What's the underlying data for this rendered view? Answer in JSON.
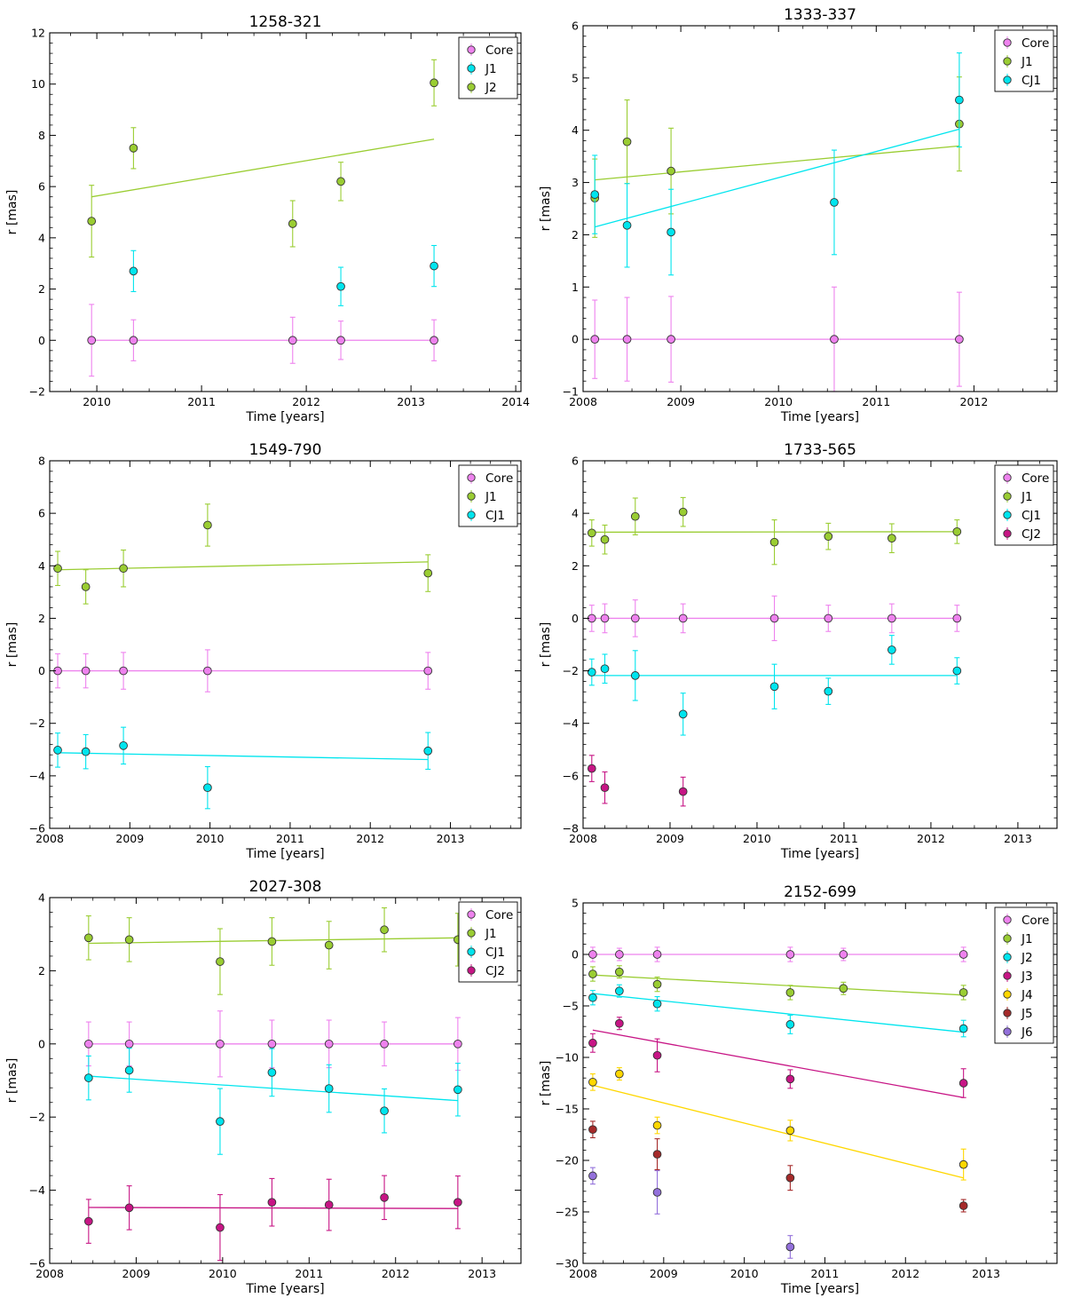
{
  "figure": {
    "xlabel": "Time [years]",
    "ylabel": "r [mas]"
  },
  "colors": {
    "Core": "#ee82ee",
    "J1": "#9acd32",
    "J2_green": "#9acd32",
    "Cyan": "#00e5ee",
    "CJ2": "#c71585",
    "J3": "#c71585",
    "J4": "#ffd700",
    "J5": "#a52a2a",
    "J6": "#9370db"
  },
  "chart_data": [
    {
      "type": "scatter",
      "title": "1258-321",
      "xlabel": "Time [years]",
      "ylabel": "r [mas]",
      "xlim": [
        2009.55,
        2014.05
      ],
      "ylim": [
        -2,
        12
      ],
      "xticks": [
        2010,
        2011,
        2012,
        2013,
        2014
      ],
      "yticks": [
        -2,
        0,
        2,
        4,
        6,
        8,
        10,
        12
      ],
      "legend": "top-right",
      "series": [
        {
          "name": "Core",
          "color": "#ee82ee",
          "x": [
            2009.95,
            2010.35,
            2011.87,
            2012.33,
            2013.22
          ],
          "y": [
            0,
            0,
            0,
            0,
            0
          ],
          "err": [
            1.4,
            0.8,
            0.9,
            0.75,
            0.8
          ],
          "fit": [
            [
              2009.95,
              0
            ],
            [
              2013.22,
              0
            ]
          ]
        },
        {
          "name": "J1",
          "color": "#00e5ee",
          "x": [
            2010.35,
            2012.33,
            2013.22
          ],
          "y": [
            2.7,
            2.1,
            2.9
          ],
          "err": [
            0.8,
            0.75,
            0.8
          ],
          "fit": null
        },
        {
          "name": "J2",
          "color": "#9acd32",
          "x": [
            2009.95,
            2010.35,
            2011.87,
            2012.33,
            2013.22
          ],
          "y": [
            4.65,
            7.5,
            4.55,
            6.2,
            10.05
          ],
          "err": [
            1.4,
            0.8,
            0.9,
            0.75,
            0.9
          ],
          "fit": [
            [
              2009.95,
              5.6
            ],
            [
              2013.22,
              7.85
            ]
          ]
        }
      ]
    },
    {
      "type": "scatter",
      "title": "1333-337",
      "xlabel": "Time [years]",
      "ylabel": "r [mas]",
      "xlim": [
        2008,
        2012.85
      ],
      "ylim": [
        -1,
        6
      ],
      "xticks": [
        2008,
        2009,
        2010,
        2011,
        2012
      ],
      "yticks": [
        -1,
        0,
        1,
        2,
        3,
        4,
        5,
        6
      ],
      "legend": "top-right",
      "series": [
        {
          "name": "Core",
          "color": "#ee82ee",
          "x": [
            2008.12,
            2008.45,
            2008.9,
            2010.57,
            2011.85
          ],
          "y": [
            0,
            0,
            0,
            0,
            0
          ],
          "err": [
            0.75,
            0.8,
            0.82,
            1.0,
            0.9
          ],
          "fit": [
            [
              2008.12,
              0
            ],
            [
              2011.85,
              0
            ]
          ]
        },
        {
          "name": "J1",
          "color": "#9acd32",
          "x": [
            2008.12,
            2008.45,
            2008.9,
            2011.85
          ],
          "y": [
            2.7,
            3.78,
            3.22,
            4.12
          ],
          "err": [
            0.75,
            0.8,
            0.82,
            0.9
          ],
          "fit": [
            [
              2008.12,
              3.05
            ],
            [
              2011.85,
              3.7
            ]
          ]
        },
        {
          "name": "CJ1",
          "color": "#00e5ee",
          "x": [
            2008.12,
            2008.45,
            2008.9,
            2010.57,
            2011.85
          ],
          "y": [
            2.77,
            2.18,
            2.05,
            2.62,
            4.58
          ],
          "err": [
            0.75,
            0.8,
            0.82,
            1.0,
            0.9
          ],
          "fit": [
            [
              2008.12,
              2.15
            ],
            [
              2011.85,
              4.02
            ]
          ]
        }
      ]
    },
    {
      "type": "scatter",
      "title": "1549-790",
      "xlabel": "Time [years]",
      "ylabel": "r [mas]",
      "xlim": [
        2008,
        2013.88
      ],
      "ylim": [
        -6,
        8
      ],
      "xticks": [
        2008,
        2009,
        2010,
        2011,
        2012,
        2013
      ],
      "yticks": [
        -6,
        -4,
        -2,
        0,
        2,
        4,
        6,
        8
      ],
      "legend": "top-right",
      "series": [
        {
          "name": "Core",
          "color": "#ee82ee",
          "x": [
            2008.1,
            2008.45,
            2008.92,
            2009.97,
            2012.72
          ],
          "y": [
            0,
            0,
            0,
            0,
            0
          ],
          "err": [
            0.65,
            0.65,
            0.7,
            0.8,
            0.7
          ],
          "fit": [
            [
              2008.1,
              0
            ],
            [
              2012.72,
              0
            ]
          ]
        },
        {
          "name": "J1",
          "color": "#9acd32",
          "x": [
            2008.1,
            2008.45,
            2008.92,
            2009.97,
            2012.72
          ],
          "y": [
            3.9,
            3.2,
            3.9,
            5.55,
            3.72
          ],
          "err": [
            0.65,
            0.65,
            0.7,
            0.8,
            0.7
          ],
          "fit": [
            [
              2008.1,
              3.85
            ],
            [
              2012.72,
              4.15
            ]
          ]
        },
        {
          "name": "CJ1",
          "color": "#00e5ee",
          "x": [
            2008.1,
            2008.45,
            2008.92,
            2009.97,
            2012.72
          ],
          "y": [
            -3.02,
            -3.08,
            -2.85,
            -4.45,
            -3.05
          ],
          "err": [
            0.65,
            0.65,
            0.7,
            0.8,
            0.7
          ],
          "fit": [
            [
              2008.1,
              -3.12
            ],
            [
              2012.72,
              -3.38
            ]
          ]
        }
      ]
    },
    {
      "type": "scatter",
      "title": "1733-565",
      "xlabel": "Time [years]",
      "ylabel": "r [mas]",
      "xlim": [
        2008,
        2013.45
      ],
      "ylim": [
        -8,
        6
      ],
      "xticks": [
        2008,
        2009,
        2010,
        2011,
        2012,
        2013
      ],
      "yticks": [
        -8,
        -6,
        -4,
        -2,
        0,
        2,
        4,
        6
      ],
      "legend": "top-right",
      "series": [
        {
          "name": "Core",
          "color": "#ee82ee",
          "x": [
            2008.1,
            2008.25,
            2008.6,
            2009.15,
            2010.2,
            2010.82,
            2011.55,
            2012.3
          ],
          "y": [
            0,
            0,
            0,
            0,
            0,
            0,
            0,
            0
          ],
          "err": [
            0.5,
            0.55,
            0.7,
            0.55,
            0.85,
            0.5,
            0.55,
            0.5
          ],
          "fit": [
            [
              2008.1,
              0
            ],
            [
              2012.3,
              0
            ]
          ]
        },
        {
          "name": "J1",
          "color": "#9acd32",
          "x": [
            2008.1,
            2008.25,
            2008.6,
            2009.15,
            2010.2,
            2010.82,
            2011.55,
            2012.3
          ],
          "y": [
            3.25,
            3.0,
            3.88,
            4.05,
            2.9,
            3.12,
            3.05,
            3.3
          ],
          "err": [
            0.5,
            0.55,
            0.7,
            0.55,
            0.85,
            0.5,
            0.55,
            0.45
          ],
          "fit": [
            [
              2008.1,
              3.28
            ],
            [
              2012.3,
              3.3
            ]
          ]
        },
        {
          "name": "CJ1",
          "color": "#00e5ee",
          "x": [
            2008.1,
            2008.25,
            2008.6,
            2009.15,
            2010.2,
            2010.82,
            2011.55,
            2012.3
          ],
          "y": [
            -2.05,
            -1.92,
            -2.18,
            -3.65,
            -2.6,
            -2.78,
            -1.2,
            -2.0
          ],
          "err": [
            0.5,
            0.55,
            0.95,
            0.8,
            0.85,
            0.5,
            0.55,
            0.5
          ],
          "fit": [
            [
              2008.1,
              -2.18
            ],
            [
              2012.3,
              -2.18
            ]
          ]
        },
        {
          "name": "CJ2",
          "color": "#c71585",
          "x": [
            2008.1,
            2008.25,
            2009.15
          ],
          "y": [
            -5.72,
            -6.45,
            -6.6
          ],
          "err": [
            0.5,
            0.6,
            0.55
          ],
          "fit": null
        }
      ]
    },
    {
      "type": "scatter",
      "title": "2027-308",
      "xlabel": "Time [years]",
      "ylabel": "r [mas]",
      "xlim": [
        2008,
        2013.45
      ],
      "ylim": [
        -6,
        4
      ],
      "xticks": [
        2008,
        2009,
        2010,
        2011,
        2012,
        2013
      ],
      "yticks": [
        -6,
        -4,
        -2,
        0,
        2,
        4
      ],
      "legend": "top-right",
      "series": [
        {
          "name": "Core",
          "color": "#ee82ee",
          "x": [
            2008.45,
            2008.92,
            2009.97,
            2010.57,
            2011.23,
            2011.87,
            2012.72
          ],
          "y": [
            0,
            0,
            0,
            0,
            0,
            0,
            0
          ],
          "err": [
            0.6,
            0.6,
            0.9,
            0.65,
            0.65,
            0.6,
            0.72
          ],
          "fit": [
            [
              2008.45,
              0
            ],
            [
              2012.72,
              0
            ]
          ]
        },
        {
          "name": "J1",
          "color": "#9acd32",
          "x": [
            2008.45,
            2008.92,
            2009.97,
            2010.57,
            2011.23,
            2011.87,
            2012.72
          ],
          "y": [
            2.9,
            2.85,
            2.25,
            2.8,
            2.7,
            3.12,
            2.85
          ],
          "err": [
            0.6,
            0.6,
            0.9,
            0.65,
            0.65,
            0.6,
            0.72
          ],
          "fit": [
            [
              2008.45,
              2.75
            ],
            [
              2012.72,
              2.9
            ]
          ]
        },
        {
          "name": "CJ1",
          "color": "#00e5ee",
          "x": [
            2008.45,
            2008.92,
            2009.97,
            2010.57,
            2011.23,
            2011.87,
            2012.72
          ],
          "y": [
            -0.93,
            -0.72,
            -2.12,
            -0.78,
            -1.22,
            -1.83,
            -1.25
          ],
          "err": [
            0.6,
            0.6,
            0.9,
            0.65,
            0.65,
            0.6,
            0.72
          ],
          "fit": [
            [
              2008.45,
              -0.88
            ],
            [
              2012.72,
              -1.55
            ]
          ]
        },
        {
          "name": "CJ2",
          "color": "#c71585",
          "x": [
            2008.45,
            2008.92,
            2009.97,
            2010.57,
            2011.23,
            2011.87,
            2012.72
          ],
          "y": [
            -4.85,
            -4.48,
            -5.02,
            -4.33,
            -4.4,
            -4.2,
            -4.33
          ],
          "err": [
            0.6,
            0.6,
            0.9,
            0.65,
            0.7,
            0.6,
            0.72
          ],
          "fit": [
            [
              2008.45,
              -4.47
            ],
            [
              2012.72,
              -4.5
            ]
          ]
        }
      ]
    },
    {
      "type": "scatter",
      "title": "2152-699",
      "xlabel": "Time [years]",
      "ylabel": "r [mas]",
      "xlim": [
        2008,
        2013.88
      ],
      "ylim": [
        -30,
        5
      ],
      "xticks": [
        2008,
        2009,
        2010,
        2011,
        2012,
        2013
      ],
      "yticks": [
        -30,
        -25,
        -20,
        -15,
        -10,
        -5,
        0,
        5
      ],
      "legend": "top-right",
      "series": [
        {
          "name": "Core",
          "color": "#ee82ee",
          "x": [
            2008.12,
            2008.45,
            2008.92,
            2010.57,
            2011.23,
            2012.72
          ],
          "y": [
            0,
            0,
            0,
            0,
            0,
            0
          ],
          "err": [
            0.7,
            0.6,
            0.7,
            0.7,
            0.6,
            0.7
          ],
          "fit": [
            [
              2008.12,
              0
            ],
            [
              2012.72,
              0
            ]
          ]
        },
        {
          "name": "J1",
          "color": "#9acd32",
          "x": [
            2008.12,
            2008.45,
            2008.92,
            2010.57,
            2011.23,
            2012.72
          ],
          "y": [
            -1.9,
            -1.7,
            -2.9,
            -3.7,
            -3.3,
            -3.7
          ],
          "err": [
            0.7,
            0.6,
            0.7,
            0.7,
            0.6,
            0.7
          ],
          "fit": [
            [
              2008.12,
              -2.0
            ],
            [
              2012.72,
              -3.95
            ]
          ]
        },
        {
          "name": "J2",
          "color": "#00e5ee",
          "x": [
            2008.12,
            2008.45,
            2008.92,
            2010.57,
            2012.72
          ],
          "y": [
            -4.2,
            -3.55,
            -4.8,
            -6.8,
            -7.2
          ],
          "err": [
            0.7,
            0.6,
            0.7,
            0.9,
            0.8
          ],
          "fit": [
            [
              2008.12,
              -3.8
            ],
            [
              2012.72,
              -7.55
            ]
          ]
        },
        {
          "name": "J3",
          "color": "#c71585",
          "x": [
            2008.12,
            2008.45,
            2008.92,
            2010.57,
            2012.72
          ],
          "y": [
            -8.6,
            -6.7,
            -9.8,
            -12.1,
            -12.5
          ],
          "err": [
            0.9,
            0.6,
            1.6,
            0.9,
            1.4
          ],
          "fit": [
            [
              2008.12,
              -7.35
            ],
            [
              2012.72,
              -13.9
            ]
          ]
        },
        {
          "name": "J4",
          "color": "#ffd700",
          "x": [
            2008.12,
            2008.45,
            2008.92,
            2010.57,
            2012.72
          ],
          "y": [
            -12.4,
            -11.6,
            -16.6,
            -17.1,
            -20.4
          ],
          "err": [
            0.8,
            0.6,
            0.8,
            1.0,
            1.5
          ],
          "fit": [
            [
              2008.12,
              -12.7
            ],
            [
              2012.72,
              -21.7
            ]
          ]
        },
        {
          "name": "J5",
          "color": "#a52a2a",
          "x": [
            2008.12,
            2008.92,
            2010.57,
            2012.72
          ],
          "y": [
            -17.0,
            -19.4,
            -21.7,
            -24.4
          ],
          "err": [
            0.8,
            1.5,
            1.2,
            0.6
          ],
          "fit": null
        },
        {
          "name": "J6",
          "color": "#9370db",
          "x": [
            2008.12,
            2008.92,
            2010.57
          ],
          "y": [
            -21.5,
            -23.1,
            -28.4
          ],
          "err": [
            0.8,
            2.1,
            1.1
          ],
          "fit": null
        }
      ]
    }
  ]
}
